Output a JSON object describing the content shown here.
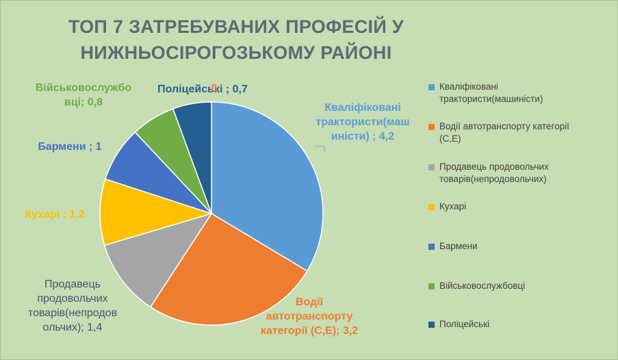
{
  "chart_data": {
    "type": "pie",
    "title": "ТОП 7 ЗАТРЕБУВАНИХ ПРОФЕСІЙ У НИЖНЬОСІРОГОЗЬКОМУ РАЙОНІ",
    "categories": [
      "Кваліфіковані трактористи(машиністи)",
      "Водії автотранспорту категорії (С,Е)",
      "Продавець продовольчих товарів(непродовольчих)",
      "Кухарі",
      "Бармени",
      "Військовослужбовці",
      "Поліцейські"
    ],
    "values": [
      4.2,
      3.2,
      1.4,
      1.2,
      1,
      0.8,
      0.7
    ],
    "colors": [
      "#5b9bd5",
      "#ed7d31",
      "#a5a5a5",
      "#ffc000",
      "#4472c4",
      "#70ad47",
      "#255e91"
    ],
    "data_labels": [
      "Кваліфіковані трактористи(машиністи) ; 4,2",
      "Водії автотранспорту категорії (С,Е); 3,2",
      "Продавець продовольчих товарів(непродовольчих); 1,4",
      "Кухарі ; 1,2",
      "Бармени ; 1",
      "Військовослужбовці; 0,8",
      "Поліцейські ; 0,7"
    ],
    "label_line_breaks": [
      [
        "Кваліфіковані",
        "трактористи(маш",
        "иністи) ; 4,2"
      ],
      [
        "Водії",
        "автотранспорту",
        "категорії (С,Е); 3,2"
      ],
      [
        "Продавець",
        "продовольчих",
        "товарів(непродов",
        "ольчих); 1,4"
      ],
      [
        "Кухарі ; 1,2"
      ],
      [
        "Бармени ; 1"
      ],
      [
        "Військовослужбо",
        "вці; 0,8"
      ],
      [
        "Поліцейські ; 0,7"
      ]
    ],
    "label_colors": [
      "#5b9bd5",
      "#ed7d31",
      "#44546a",
      "#ffc000",
      "#4472c4",
      "#70ad47",
      "#255e91"
    ],
    "stray_label": "0",
    "legend_position": "right",
    "legend_entries": [
      "Кваліфіковані\nтрактористи(машиністи)",
      "Водії автотранспорту категорії\n(С,Е)",
      "Продавець продовольчих\nтоварів(непродовольчих)",
      "Кухарі",
      "Бармени",
      "Військовослужбовці",
      "Поліцейські"
    ]
  }
}
